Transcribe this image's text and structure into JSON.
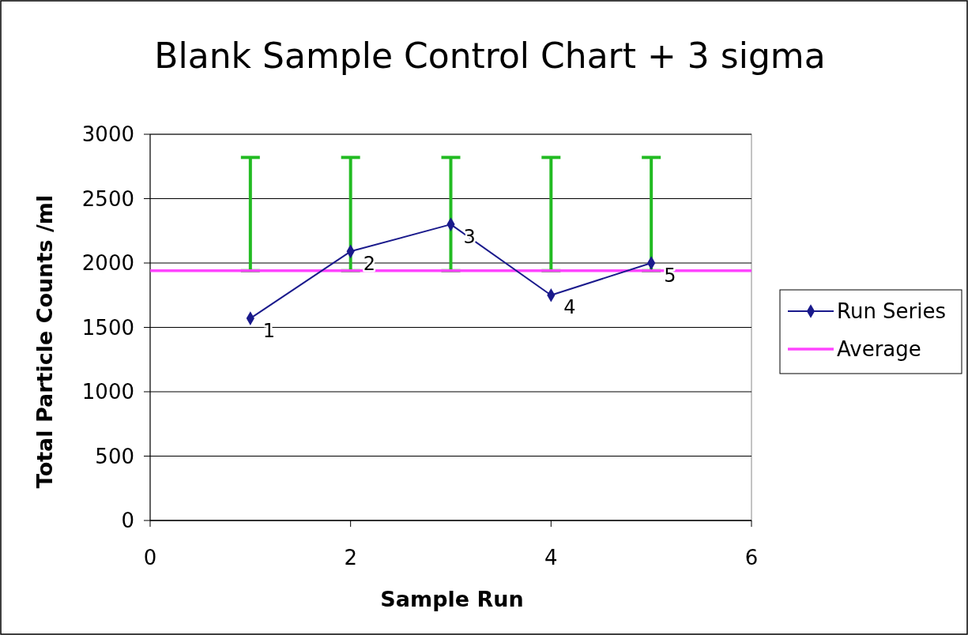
{
  "chart_data": {
    "type": "line",
    "title": "Blank Sample Control Chart + 3 sigma",
    "xlabel": "Sample Run",
    "ylabel": "Total Particle Counts /ml",
    "xlim": [
      0,
      6
    ],
    "xticks": [
      0,
      2,
      4,
      6
    ],
    "ylim": [
      0,
      3000
    ],
    "yticks": [
      0,
      500,
      1000,
      1500,
      2000,
      2500,
      3000
    ],
    "grid": "y",
    "legend": "right",
    "marker": "diamond",
    "series": [
      {
        "name": "Run Series",
        "color": "#1a1a8c",
        "x": [
          1,
          2,
          3,
          4,
          5
        ],
        "values": [
          1570,
          2090,
          2300,
          1750,
          2000
        ]
      },
      {
        "name": "Average",
        "marker": "none",
        "color": "#ff44ff",
        "x": [
          0,
          1,
          2,
          3,
          4,
          5,
          6
        ],
        "values": [
          1940,
          1940,
          1940,
          1940,
          1940,
          1940,
          1940
        ],
        "errors": [
          null,
          [
            1940,
            2820
          ],
          [
            1940,
            2820
          ],
          [
            1940,
            2820
          ],
          [
            1940,
            2820
          ],
          [
            1940,
            2820
          ],
          null
        ]
      }
    ],
    "annotations": [
      {
        "text": "1",
        "x": 1,
        "y": 1570
      },
      {
        "text": "2",
        "x": 2,
        "y": 2090
      },
      {
        "text": "3",
        "x": 3,
        "y": 2300
      },
      {
        "text": "4",
        "x": 4,
        "y": 1750
      },
      {
        "text": "5",
        "x": 5,
        "y": 2000
      }
    ]
  }
}
